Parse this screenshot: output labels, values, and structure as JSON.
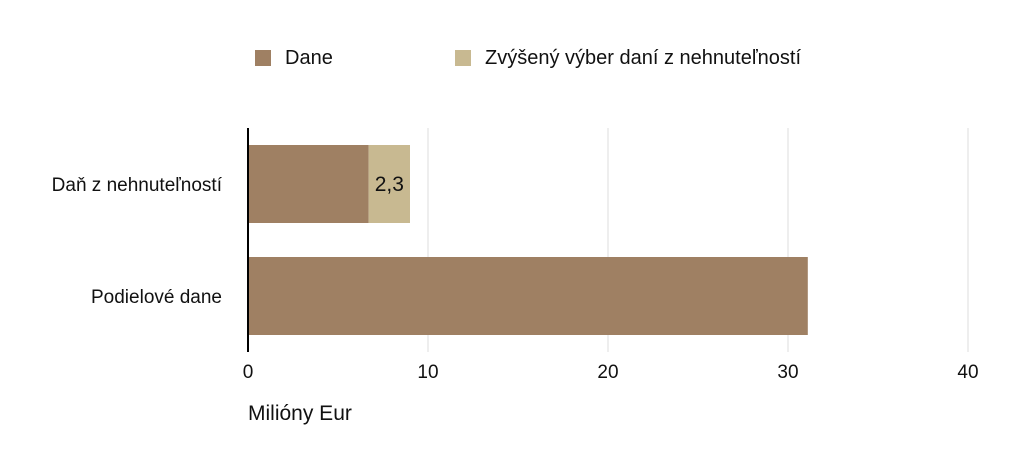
{
  "chart_data": {
    "type": "bar",
    "orientation": "horizontal",
    "stacked": true,
    "categories": [
      "Daň z nehnuteľností",
      "Podielové dane"
    ],
    "series": [
      {
        "name": "Dane",
        "values": [
          6.7,
          31.1
        ],
        "color": "#9f8063"
      },
      {
        "name": "Zvýšený výber daní z nehnuteľností",
        "values": [
          2.3,
          0
        ],
        "color": "#c8b991"
      }
    ],
    "data_labels": [
      {
        "category": "Daň z nehnuteľností",
        "series": "Zvýšený výber daní z nehnuteľností",
        "text": "2,3"
      }
    ],
    "xlabel": "Milióny Eur",
    "ylabel": "",
    "xlim": [
      0,
      40
    ],
    "xticks": [
      0,
      10,
      20,
      30,
      40
    ],
    "grid": "vertical",
    "legend_position": "top"
  }
}
